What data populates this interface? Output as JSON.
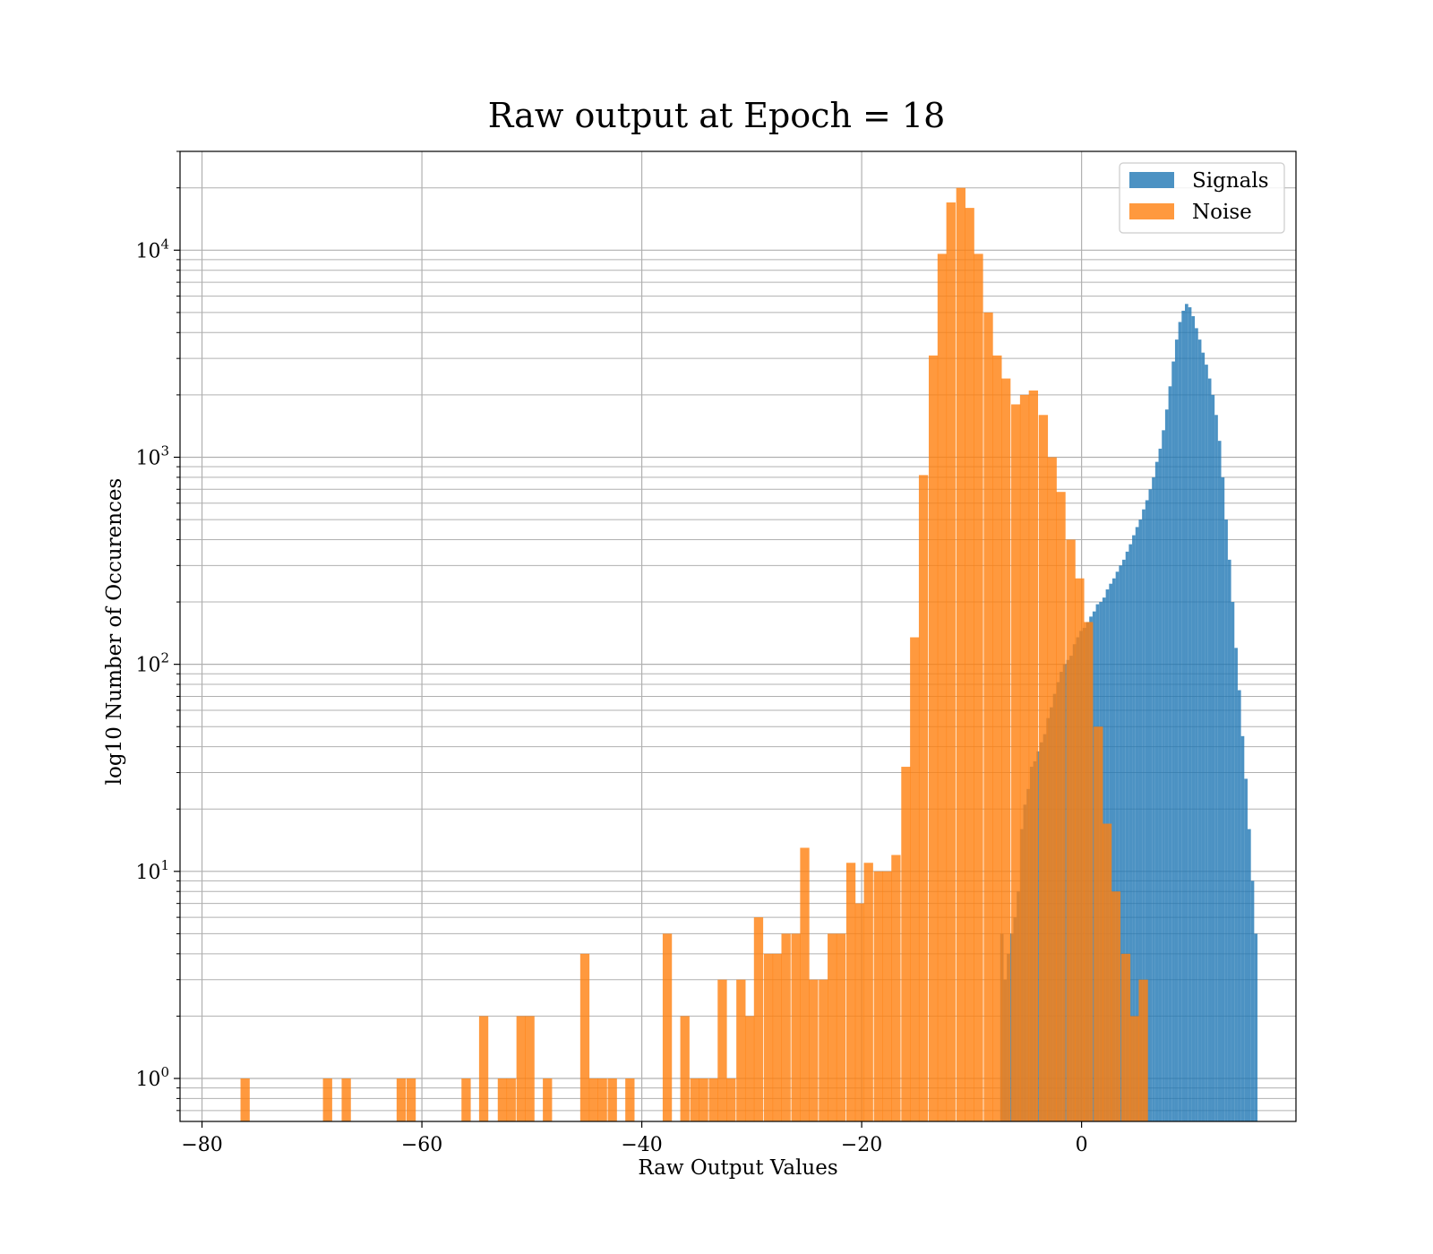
{
  "chart_data": {
    "type": "bar",
    "title": "Raw output at Epoch = 18",
    "xlabel": "Raw Output Values",
    "ylabel": "log10 Number of Occurences",
    "xlim": [
      -82,
      19.5
    ],
    "ylim": [
      0.62,
      30000
    ],
    "yscale": "log",
    "grid": true,
    "grid_minor_y": true,
    "legend_position": "top-right",
    "x_ticks": [
      -80,
      -60,
      -40,
      -20,
      0
    ],
    "x_tick_labels": [
      "−80",
      "−60",
      "−40",
      "−20",
      "0"
    ],
    "y_ticks": [
      1,
      10,
      100,
      1000,
      10000
    ],
    "y_tick_labels": [
      {
        "base": "10",
        "exp": "0"
      },
      {
        "base": "10",
        "exp": "1"
      },
      {
        "base": "10",
        "exp": "2"
      },
      {
        "base": "10",
        "exp": "3"
      },
      {
        "base": "10",
        "exp": "4"
      }
    ],
    "colors": {
      "Signals": "#1f77b4",
      "Noise": "#ff7f0e"
    },
    "series": [
      {
        "name": "Signals",
        "color": "#1f77b4",
        "opacity": 0.8,
        "bin_width": 0.3,
        "bins": [
          [
            -7.4,
            5
          ],
          [
            -7.1,
            3
          ],
          [
            -6.8,
            4
          ],
          [
            -6.5,
            5
          ],
          [
            -6.2,
            6
          ],
          [
            -5.9,
            8
          ],
          [
            -5.6,
            16
          ],
          [
            -5.3,
            21
          ],
          [
            -5.0,
            25
          ],
          [
            -4.7,
            32
          ],
          [
            -4.4,
            34
          ],
          [
            -4.1,
            38
          ],
          [
            -3.8,
            42
          ],
          [
            -3.5,
            46
          ],
          [
            -3.2,
            55
          ],
          [
            -2.9,
            62
          ],
          [
            -2.6,
            72
          ],
          [
            -2.3,
            82
          ],
          [
            -2.0,
            92
          ],
          [
            -1.7,
            100
          ],
          [
            -1.4,
            105
          ],
          [
            -1.1,
            110
          ],
          [
            -0.8,
            125
          ],
          [
            -0.5,
            135
          ],
          [
            -0.2,
            145
          ],
          [
            0.1,
            150
          ],
          [
            0.4,
            160
          ],
          [
            0.7,
            170
          ],
          [
            1.0,
            180
          ],
          [
            1.3,
            195
          ],
          [
            1.6,
            200
          ],
          [
            1.9,
            210
          ],
          [
            2.2,
            230
          ],
          [
            2.5,
            245
          ],
          [
            2.8,
            260
          ],
          [
            3.1,
            280
          ],
          [
            3.4,
            300
          ],
          [
            3.7,
            320
          ],
          [
            4.0,
            350
          ],
          [
            4.3,
            380
          ],
          [
            4.6,
            420
          ],
          [
            4.9,
            460
          ],
          [
            5.2,
            500
          ],
          [
            5.5,
            560
          ],
          [
            5.8,
            620
          ],
          [
            6.1,
            700
          ],
          [
            6.4,
            800
          ],
          [
            6.7,
            950
          ],
          [
            7.0,
            1100
          ],
          [
            7.3,
            1350
          ],
          [
            7.6,
            1700
          ],
          [
            7.9,
            2200
          ],
          [
            8.2,
            2900
          ],
          [
            8.5,
            3700
          ],
          [
            8.8,
            4500
          ],
          [
            9.1,
            5100
          ],
          [
            9.4,
            5500
          ],
          [
            9.7,
            5300
          ],
          [
            10.0,
            4800
          ],
          [
            10.3,
            4200
          ],
          [
            10.6,
            3700
          ],
          [
            10.9,
            3200
          ],
          [
            11.2,
            2800
          ],
          [
            11.5,
            2400
          ],
          [
            11.8,
            2000
          ],
          [
            12.1,
            1600
          ],
          [
            12.4,
            1200
          ],
          [
            12.7,
            800
          ],
          [
            13.0,
            500
          ],
          [
            13.3,
            320
          ],
          [
            13.6,
            200
          ],
          [
            13.9,
            120
          ],
          [
            14.2,
            75
          ],
          [
            14.5,
            45
          ],
          [
            14.8,
            28
          ],
          [
            15.1,
            16
          ],
          [
            15.4,
            9
          ],
          [
            15.7,
            5
          ]
        ]
      },
      {
        "name": "Noise",
        "color": "#ff7f0e",
        "opacity": 0.8,
        "bin_width": 0.84,
        "bins": [
          [
            -76.5,
            1
          ],
          [
            -69.0,
            1
          ],
          [
            -67.3,
            1
          ],
          [
            -62.3,
            1
          ],
          [
            -61.4,
            1
          ],
          [
            -56.4,
            1
          ],
          [
            -54.8,
            2
          ],
          [
            -53.1,
            1
          ],
          [
            -52.3,
            1
          ],
          [
            -51.4,
            2
          ],
          [
            -50.6,
            2
          ],
          [
            -49.0,
            1
          ],
          [
            -45.6,
            4
          ],
          [
            -44.8,
            1
          ],
          [
            -44.0,
            1
          ],
          [
            -43.1,
            1
          ],
          [
            -41.5,
            1
          ],
          [
            -38.1,
            5
          ],
          [
            -36.5,
            2
          ],
          [
            -35.6,
            1
          ],
          [
            -34.8,
            1
          ],
          [
            -33.9,
            1
          ],
          [
            -33.1,
            3
          ],
          [
            -32.3,
            1
          ],
          [
            -31.4,
            3
          ],
          [
            -30.6,
            2
          ],
          [
            -29.8,
            6
          ],
          [
            -28.9,
            4
          ],
          [
            -28.1,
            4
          ],
          [
            -27.3,
            5
          ],
          [
            -26.4,
            5
          ],
          [
            -25.6,
            13
          ],
          [
            -24.8,
            3
          ],
          [
            -23.9,
            3
          ],
          [
            -23.1,
            5
          ],
          [
            -22.3,
            5
          ],
          [
            -21.4,
            11
          ],
          [
            -20.6,
            7
          ],
          [
            -19.8,
            11
          ],
          [
            -18.9,
            10
          ],
          [
            -18.1,
            10
          ],
          [
            -17.3,
            12
          ],
          [
            -16.4,
            32
          ],
          [
            -15.6,
            135
          ],
          [
            -14.8,
            820
          ],
          [
            -13.9,
            3100
          ],
          [
            -13.1,
            9600
          ],
          [
            -12.3,
            17000
          ],
          [
            -11.4,
            20000
          ],
          [
            -10.6,
            16000
          ],
          [
            -9.8,
            9600
          ],
          [
            -8.9,
            5000
          ],
          [
            -8.1,
            3100
          ],
          [
            -7.3,
            2400
          ],
          [
            -6.4,
            1800
          ],
          [
            -5.6,
            2000
          ],
          [
            -4.8,
            2100
          ],
          [
            -3.9,
            1600
          ],
          [
            -3.1,
            1000
          ],
          [
            -2.3,
            680
          ],
          [
            -1.4,
            400
          ],
          [
            -0.6,
            260
          ],
          [
            0.2,
            160
          ],
          [
            1.1,
            50
          ],
          [
            1.9,
            17
          ],
          [
            2.7,
            8
          ],
          [
            3.6,
            4
          ],
          [
            4.4,
            2
          ],
          [
            5.2,
            3
          ]
        ]
      }
    ]
  }
}
